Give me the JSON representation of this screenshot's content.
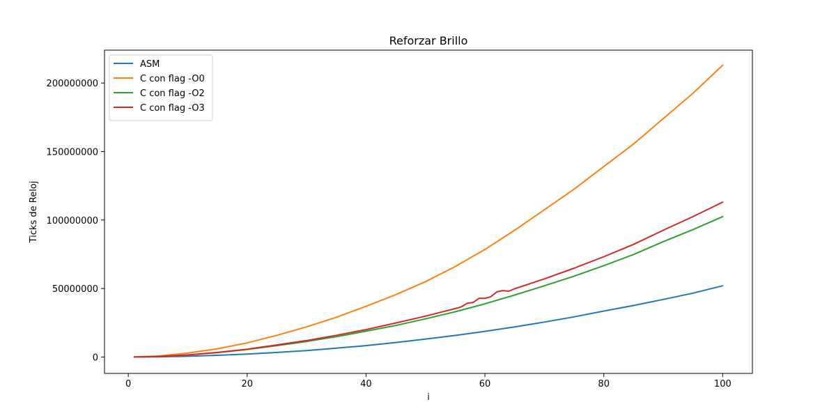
{
  "chart_data": {
    "type": "line",
    "title": "Reforzar Brillo",
    "xlabel": "i",
    "ylabel": "Ticks de Reloj",
    "xlim": [
      -4,
      105
    ],
    "ylim": [
      -12000000,
      224000000
    ],
    "xticks": [
      0,
      20,
      40,
      60,
      80,
      100
    ],
    "xtick_labels": [
      "0",
      "20",
      "40",
      "60",
      "80",
      "100"
    ],
    "yticks": [
      0,
      50000000,
      100000000,
      150000000,
      200000000
    ],
    "ytick_labels": [
      "0",
      "50000000",
      "100000000",
      "150000000",
      "200000000"
    ],
    "grid": false,
    "legend_position": "upper-left",
    "x": [
      1,
      5,
      10,
      15,
      20,
      25,
      30,
      35,
      40,
      45,
      50,
      55,
      60,
      65,
      70,
      75,
      80,
      85,
      90,
      95,
      100
    ],
    "series": [
      {
        "name": "ASM",
        "color": "#1f77b4",
        "x": [
          1,
          5,
          10,
          15,
          20,
          25,
          30,
          35,
          40,
          45,
          50,
          55,
          60,
          65,
          70,
          75,
          80,
          85,
          90,
          95,
          100
        ],
        "values": [
          0,
          100000,
          500000,
          1200000,
          2100000,
          3300000,
          4700000,
          6400000,
          8300000,
          10600000,
          13000000,
          15700000,
          18700000,
          21900000,
          25500000,
          29300000,
          33500000,
          37600000,
          42000000,
          46600000,
          52000000
        ]
      },
      {
        "name": "C con flag -O0",
        "color": "#ff7f0e",
        "x": [
          1,
          5,
          10,
          15,
          20,
          25,
          30,
          35,
          40,
          45,
          50,
          55,
          60,
          65,
          70,
          75,
          80,
          85,
          90,
          95,
          100
        ],
        "values": [
          0,
          700000,
          2800000,
          6000000,
          10300000,
          15800000,
          22000000,
          29000000,
          37000000,
          45500000,
          55000000,
          66000000,
          78500000,
          92500000,
          107500000,
          122500000,
          139000000,
          155500000,
          174000000,
          192500000,
          213000000
        ]
      },
      {
        "name": "C con flag -O2",
        "color": "#2ca02c",
        "x": [
          1,
          5,
          10,
          15,
          20,
          25,
          30,
          35,
          40,
          45,
          50,
          55,
          60,
          65,
          70,
          75,
          80,
          85,
          90,
          95,
          100
        ],
        "values": [
          0,
          300000,
          1500000,
          3200000,
          5500000,
          8300000,
          11300000,
          14800000,
          18800000,
          23000000,
          27800000,
          33000000,
          38800000,
          45200000,
          52000000,
          59000000,
          66700000,
          74800000,
          84200000,
          93000000,
          102500000
        ]
      },
      {
        "name": "C con flag -O3",
        "color": "#d62728",
        "x": [
          1,
          5,
          10,
          15,
          20,
          25,
          30,
          35,
          40,
          45,
          50,
          55,
          56,
          57,
          58,
          59,
          60,
          61,
          62,
          63,
          64,
          65,
          70,
          75,
          80,
          85,
          90,
          95,
          100
        ],
        "values": [
          0,
          300000,
          1500000,
          3300000,
          5700000,
          8800000,
          12000000,
          15800000,
          20000000,
          24800000,
          29800000,
          35300000,
          36500000,
          39200000,
          39800000,
          42800000,
          42800000,
          44000000,
          47500000,
          48500000,
          48000000,
          49800000,
          57000000,
          64800000,
          73200000,
          82200000,
          92500000,
          102500000,
          113000000
        ]
      }
    ]
  }
}
